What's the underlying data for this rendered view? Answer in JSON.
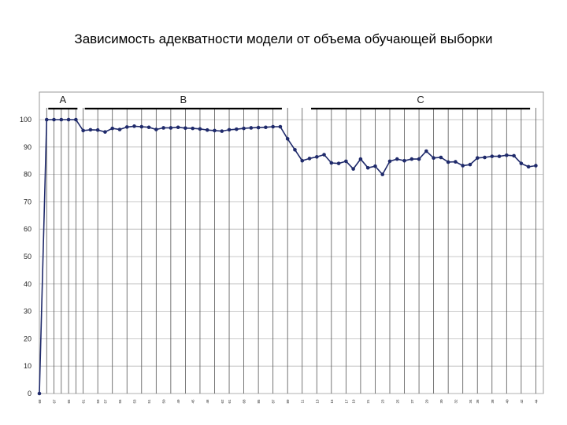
{
  "slide": {
    "title": "Зависимость адекватности модели от объема обучающей выборки"
  },
  "chart_data": {
    "type": "line",
    "title": "",
    "xlabel": "",
    "ylabel": "",
    "ylim": [
      0,
      100
    ],
    "yticks": [
      "0",
      "10",
      "20",
      "30",
      "40",
      "50",
      "60",
      "70",
      "80",
      "90",
      "100"
    ],
    "grid": true,
    "segments": [
      {
        "label": "A",
        "from_point": 1,
        "to_point": 5
      },
      {
        "label": "B",
        "from_point": 6,
        "to_point": 33
      },
      {
        "label": "C",
        "from_point": 37,
        "to_point": 67
      }
    ],
    "x_tick_labels": [
      "68",
      "67",
      "65",
      "61",
      "59",
      "57",
      "55",
      "53",
      "51",
      "50",
      "49",
      "45",
      "46",
      "62",
      "61",
      "68",
      "85",
      "87",
      "89",
      "11",
      "13",
      "15",
      "17",
      "19",
      "21",
      "23",
      "25",
      "27",
      "29",
      "30",
      "32",
      "34",
      "36",
      "38",
      "40",
      "42",
      "44"
    ],
    "series": [
      {
        "values": [
          0,
          100,
          100,
          100,
          100,
          100,
          96,
          96.3,
          96.2,
          95.5,
          96.8,
          96.4,
          97.3,
          97.6,
          97.4,
          97.2,
          96.4,
          97.0,
          97.0,
          97.2,
          96.9,
          96.8,
          96.6,
          96.2,
          96.0,
          95.8,
          96.3,
          96.5,
          96.8,
          97.0,
          97.1,
          97.2,
          97.4,
          97.4,
          93.0,
          89.0,
          85.0,
          85.8,
          86.4,
          87.2,
          84.2,
          84.0,
          84.8,
          82.0,
          85.6,
          82.4,
          83.0,
          80.0,
          84.8,
          85.6,
          85.0,
          85.6,
          85.6,
          88.5,
          86.0,
          86.2,
          84.5,
          84.6,
          83.2,
          83.6,
          86.0,
          86.2,
          86.6,
          86.6,
          87.0,
          86.8,
          84.0,
          82.8,
          83.2
        ]
      }
    ]
  }
}
